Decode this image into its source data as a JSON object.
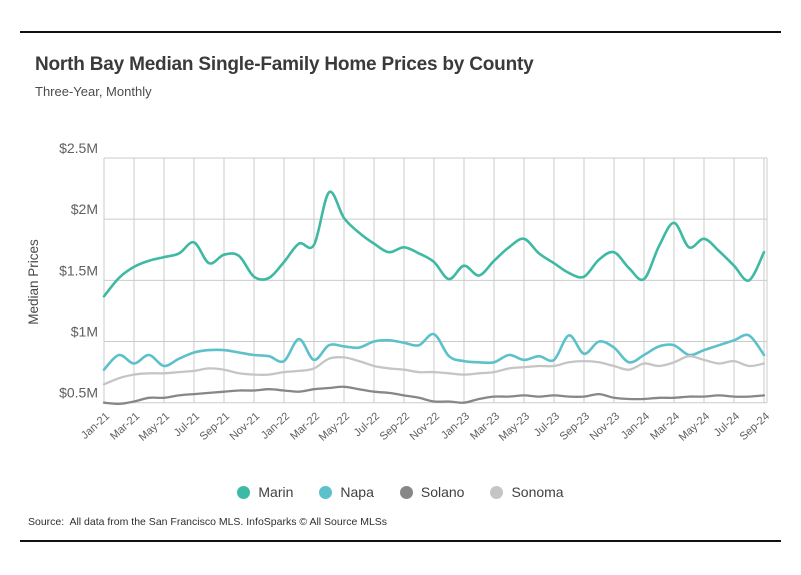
{
  "page": {
    "title": "North Bay Median Single-Family Home Prices by County",
    "subtitle": "Three-Year, Monthly",
    "source": "Source:  All data from the San Francisco MLS. InfoSparks © All Source MLSs"
  },
  "chart_data": {
    "type": "line",
    "title": "North Bay Median Single-Family Home Prices by County",
    "subtitle": "Three-Year, Monthly",
    "xlabel": "",
    "ylabel": "Median Prices",
    "unit": "$M",
    "ylim": [
      0.5,
      2.5
    ],
    "grid": true,
    "legend_position": "bottom",
    "y_ticks": [
      {
        "value": 0.5,
        "label": "$0.5M"
      },
      {
        "value": 1.0,
        "label": "$1M"
      },
      {
        "value": 1.5,
        "label": "$1.5M"
      },
      {
        "value": 2.0,
        "label": "$2M"
      },
      {
        "value": 2.5,
        "label": "$2.5M"
      }
    ],
    "x_tick_labels": [
      "Jan-21",
      "Mar-21",
      "May-21",
      "Jul-21",
      "Sep-21",
      "Nov-21",
      "Jan-22",
      "Mar-22",
      "May-22",
      "Jul-22",
      "Sep-22",
      "Nov-22",
      "Jan-23",
      "Mar-23",
      "May-23",
      "Jul-23",
      "Sep-23",
      "Nov-23",
      "Jan-24",
      "Mar-24",
      "May-24",
      "Jul-24",
      "Sep-24"
    ],
    "categories": [
      "Jan-21",
      "Feb-21",
      "Mar-21",
      "Apr-21",
      "May-21",
      "Jun-21",
      "Jul-21",
      "Aug-21",
      "Sep-21",
      "Oct-21",
      "Nov-21",
      "Dec-21",
      "Jan-22",
      "Feb-22",
      "Mar-22",
      "Apr-22",
      "May-22",
      "Jun-22",
      "Jul-22",
      "Aug-22",
      "Sep-22",
      "Oct-22",
      "Nov-22",
      "Dec-22",
      "Jan-23",
      "Feb-23",
      "Mar-23",
      "Apr-23",
      "May-23",
      "Jun-23",
      "Jul-23",
      "Aug-23",
      "Sep-23",
      "Oct-23",
      "Nov-23",
      "Dec-23",
      "Jan-24",
      "Feb-24",
      "Mar-24",
      "Apr-24",
      "May-24",
      "Jun-24",
      "Jul-24",
      "Aug-24",
      "Sep-24"
    ],
    "series": [
      {
        "name": "Marin",
        "color": "#3eb9a4",
        "values": [
          1.37,
          1.52,
          1.61,
          1.66,
          1.69,
          1.72,
          1.81,
          1.64,
          1.71,
          1.7,
          1.53,
          1.52,
          1.65,
          1.8,
          1.79,
          2.22,
          2.01,
          1.89,
          1.8,
          1.73,
          1.77,
          1.72,
          1.65,
          1.51,
          1.62,
          1.54,
          1.66,
          1.77,
          1.84,
          1.72,
          1.64,
          1.56,
          1.53,
          1.67,
          1.73,
          1.6,
          1.51,
          1.78,
          1.97,
          1.77,
          1.84,
          1.74,
          1.62,
          1.5,
          1.73
        ]
      },
      {
        "name": "Napa",
        "color": "#5cc1cb",
        "values": [
          0.77,
          0.89,
          0.82,
          0.89,
          0.8,
          0.86,
          0.91,
          0.93,
          0.93,
          0.91,
          0.89,
          0.88,
          0.84,
          1.02,
          0.85,
          0.97,
          0.96,
          0.95,
          1.0,
          1.01,
          0.99,
          0.97,
          1.06,
          0.88,
          0.84,
          0.83,
          0.83,
          0.89,
          0.85,
          0.88,
          0.85,
          1.05,
          0.9,
          1.0,
          0.95,
          0.83,
          0.89,
          0.96,
          0.97,
          0.89,
          0.93,
          0.97,
          1.01,
          1.05,
          0.89
        ]
      },
      {
        "name": "Solano",
        "color": "#878787",
        "values": [
          0.5,
          0.49,
          0.51,
          0.54,
          0.54,
          0.56,
          0.57,
          0.58,
          0.59,
          0.6,
          0.6,
          0.61,
          0.6,
          0.59,
          0.61,
          0.62,
          0.63,
          0.61,
          0.59,
          0.58,
          0.56,
          0.54,
          0.51,
          0.51,
          0.5,
          0.53,
          0.55,
          0.55,
          0.56,
          0.55,
          0.56,
          0.55,
          0.55,
          0.57,
          0.54,
          0.53,
          0.53,
          0.54,
          0.54,
          0.55,
          0.55,
          0.56,
          0.55,
          0.55,
          0.56
        ]
      },
      {
        "name": "Sonoma",
        "color": "#c5c5c5",
        "values": [
          0.65,
          0.7,
          0.73,
          0.74,
          0.74,
          0.75,
          0.76,
          0.78,
          0.77,
          0.74,
          0.73,
          0.73,
          0.75,
          0.76,
          0.78,
          0.86,
          0.87,
          0.84,
          0.8,
          0.78,
          0.77,
          0.75,
          0.75,
          0.74,
          0.73,
          0.74,
          0.75,
          0.78,
          0.79,
          0.8,
          0.8,
          0.83,
          0.84,
          0.83,
          0.8,
          0.77,
          0.82,
          0.8,
          0.83,
          0.88,
          0.85,
          0.82,
          0.84,
          0.8,
          0.82
        ]
      }
    ],
    "grid_color": "#cbcbcb",
    "axis_text_color": "#5f5f5f"
  }
}
